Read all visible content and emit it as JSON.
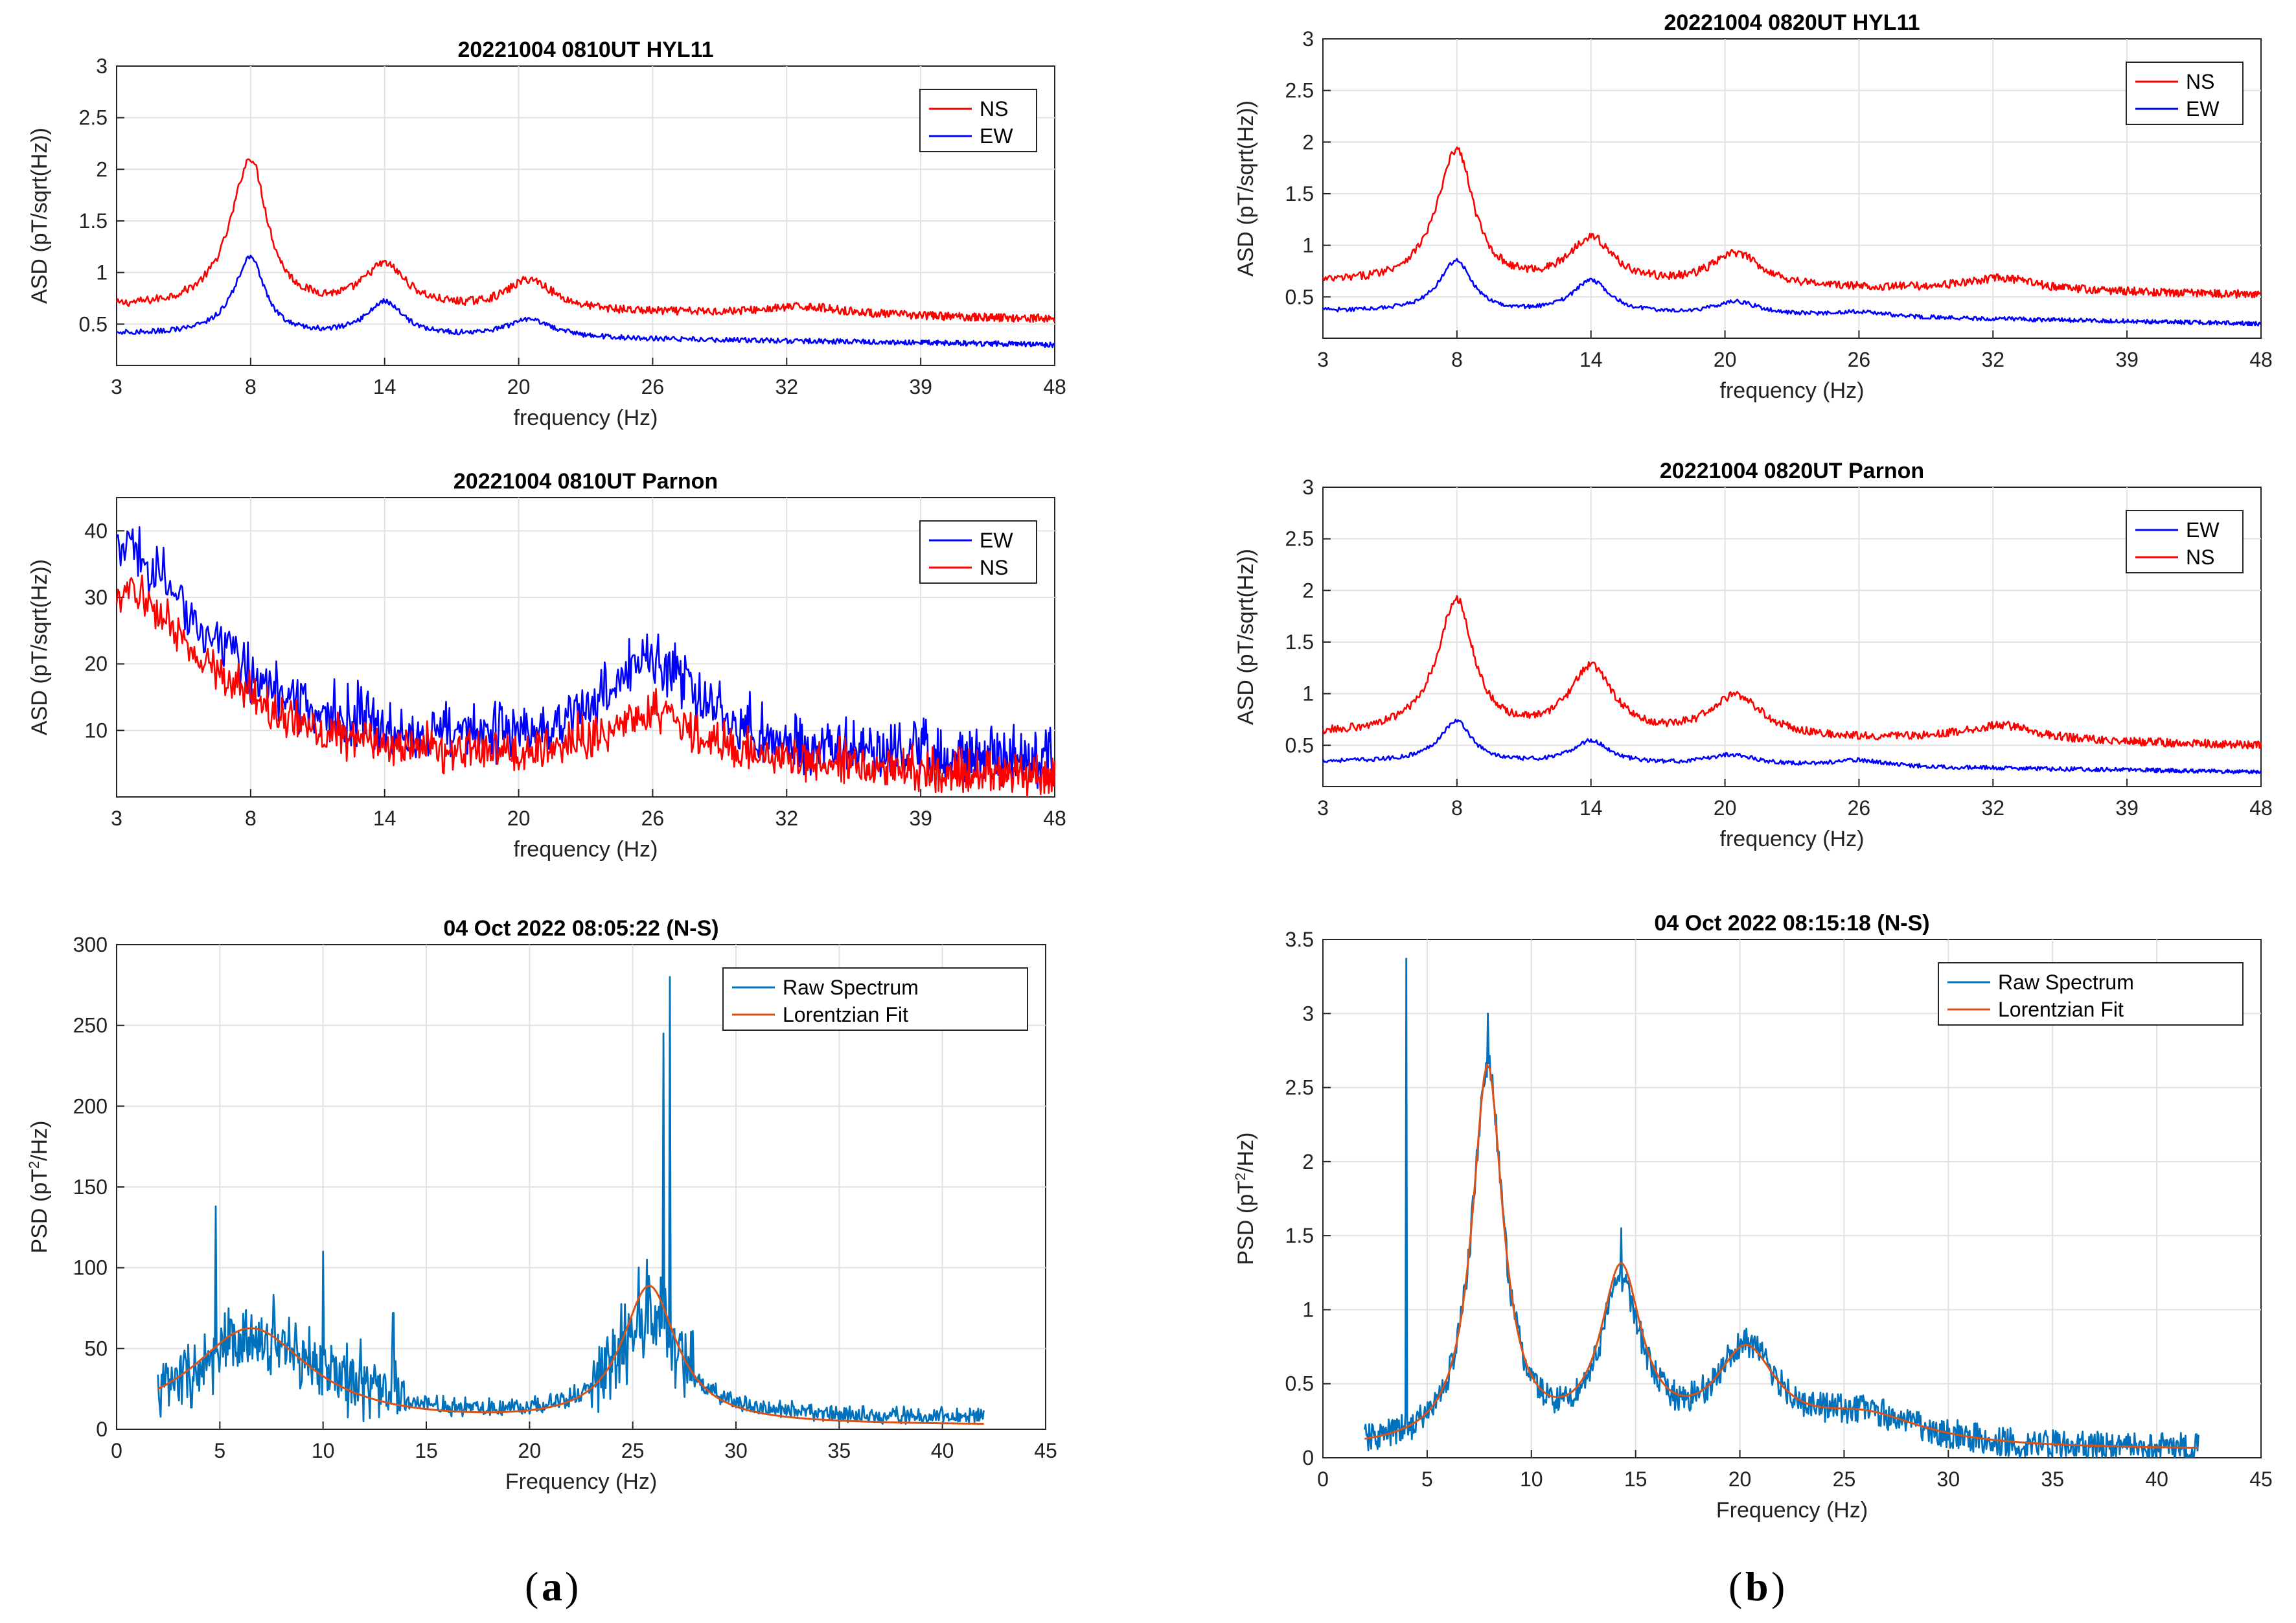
{
  "figure_labels": {
    "a": "a",
    "b": "b"
  },
  "colors": {
    "ns": "#ff0000",
    "ew": "#0000ff",
    "raw": "#0072bd",
    "fit": "#d95319",
    "grid": "#e2e2e2"
  },
  "chart_data": [
    {
      "id": "a1",
      "type": "line",
      "title": "20221004  0810UT     HYL11",
      "xlabel": "frequency (Hz)",
      "ylabel": "ASD (pT/sqrt(Hz))",
      "xticks": [
        3,
        8,
        14,
        20,
        26,
        32,
        39,
        48
      ],
      "yticks": [
        0.5,
        1,
        1.5,
        2,
        2.5,
        3
      ],
      "ylim": [
        0.1,
        3
      ],
      "legend": [
        "NS",
        "EW"
      ],
      "series": [
        {
          "name": "NS",
          "color": "#ff0000",
          "baseline": 0.65,
          "peaks": [
            [
              8,
              1.45,
              0.9
            ],
            [
              14,
              0.42,
              1.2
            ],
            [
              20.5,
              0.3,
              1.3
            ],
            [
              33,
              0.08,
              2.5
            ]
          ],
          "noise": 0.04,
          "tail": -0.1
        },
        {
          "name": "EW",
          "color": "#0000ff",
          "baseline": 0.4,
          "peaks": [
            [
              8,
              0.75,
              0.75
            ],
            [
              14,
              0.33,
              1.0
            ],
            [
              20.5,
              0.17,
              1.3
            ]
          ],
          "noise": 0.025,
          "tail": -0.1
        }
      ]
    },
    {
      "id": "a2",
      "type": "line",
      "title": "20221004  0810UT     Parnon",
      "xlabel": "frequency (Hz)",
      "ylabel": "ASD (pT/sqrt(Hz))",
      "xticks": [
        3,
        8,
        14,
        20,
        26,
        32,
        39,
        48
      ],
      "yticks": [
        10,
        20,
        30,
        40
      ],
      "ylim": [
        0,
        45
      ],
      "legend": [
        "EW",
        "NS"
      ],
      "series": [
        {
          "name": "EW",
          "color": "#0000ff",
          "baseline": 6,
          "peaks": [
            [
              3,
              30,
              4
            ],
            [
              26,
              14,
              2.5
            ]
          ],
          "noise": 8,
          "tail": -2,
          "spiky": true
        },
        {
          "name": "NS",
          "color": "#ff0000",
          "baseline": 4,
          "peaks": [
            [
              3,
              26,
              4
            ],
            [
              26,
              8,
              3
            ]
          ],
          "noise": 6,
          "tail": -2,
          "spiky": true
        }
      ]
    },
    {
      "id": "a3",
      "type": "line",
      "title": "04 Oct 2022 08:05:22 (N-S)",
      "xlabel": "Frequency (Hz)",
      "ylabel": "PSD (pT",
      "ylabel_sup": "2",
      "ylabel_end": "/Hz)",
      "xticks": [
        0,
        5,
        10,
        15,
        20,
        25,
        30,
        35,
        40,
        45
      ],
      "yticks": [
        0,
        50,
        100,
        150,
        200,
        250,
        300
      ],
      "xlim": [
        0,
        45
      ],
      "ylim": [
        0,
        300
      ],
      "legend": [
        "Raw Spectrum",
        "Lorentzian Fit"
      ],
      "series": [
        {
          "name": "Raw Spectrum",
          "color": "#0072bd",
          "x_range": [
            2,
            42
          ],
          "baseline": 5,
          "peaks": [
            [
              7,
              45,
              3.5
            ],
            [
              25.8,
              60,
              1.8
            ]
          ],
          "noise": 40,
          "spiky": true,
          "spikes": [
            [
              26.8,
              280
            ],
            [
              26.5,
              245
            ],
            [
              4.8,
              138
            ],
            [
              10,
              110
            ],
            [
              13.4,
              72
            ]
          ]
        },
        {
          "name": "Lorentzian Fit",
          "color": "#d95319",
          "x_range": [
            2,
            42
          ],
          "baseline": 2,
          "peaks": [
            [
              6.5,
              60,
              3.5
            ],
            [
              25.8,
              85,
              1.6
            ]
          ],
          "noise": 0
        }
      ]
    },
    {
      "id": "b1",
      "type": "line",
      "title": "20221004  0820UT     HYL11",
      "xlabel": "frequency (Hz)",
      "ylabel": "ASD (pT/sqrt(Hz))",
      "xticks": [
        3,
        8,
        14,
        20,
        26,
        32,
        39,
        48
      ],
      "yticks": [
        0.5,
        1,
        1.5,
        2,
        2.5,
        3
      ],
      "ylim": [
        0.1,
        3
      ],
      "legend": [
        "NS",
        "EW"
      ],
      "series": [
        {
          "name": "NS",
          "color": "#ff0000",
          "baseline": 0.62,
          "peaks": [
            [
              8,
              1.3,
              0.9
            ],
            [
              14,
              0.45,
              1.2
            ],
            [
              20.5,
              0.32,
              1.4
            ],
            [
              32.5,
              0.12,
              2.2
            ]
          ],
          "noise": 0.04,
          "tail": -0.1
        },
        {
          "name": "EW",
          "color": "#0000ff",
          "baseline": 0.36,
          "peaks": [
            [
              8,
              0.5,
              0.8
            ],
            [
              14,
              0.32,
              1.0
            ],
            [
              20.5,
              0.13,
              1.3
            ],
            [
              26,
              0.05,
              1.5
            ]
          ],
          "noise": 0.02,
          "tail": -0.12
        }
      ]
    },
    {
      "id": "b2",
      "type": "line",
      "title": "20221004  0820UT     Parnon",
      "xlabel": "frequency (Hz)",
      "ylabel": "ASD (pT/sqrt(Hz))",
      "xticks": [
        3,
        8,
        14,
        20,
        26,
        32,
        39,
        48
      ],
      "yticks": [
        0.5,
        1,
        1.5,
        2,
        2.5,
        3
      ],
      "ylim": [
        0.1,
        3
      ],
      "legend": [
        "EW",
        "NS"
      ],
      "series": [
        {
          "name": "EW",
          "color": "#0000ff",
          "baseline": 0.34,
          "peaks": [
            [
              8,
              0.4,
              0.8
            ],
            [
              14,
              0.22,
              1.0
            ],
            [
              20.3,
              0.1,
              1.3
            ],
            [
              26,
              0.06,
              1.5
            ]
          ],
          "noise": 0.02,
          "tail": -0.1
        },
        {
          "name": "NS",
          "color": "#ff0000",
          "baseline": 0.6,
          "peaks": [
            [
              8,
              1.3,
              0.9
            ],
            [
              14,
              0.65,
              1.2
            ],
            [
              20.5,
              0.4,
              1.4
            ],
            [
              32.5,
              0.15,
              2.2
            ]
          ],
          "noise": 0.04,
          "tail": -0.1
        }
      ]
    },
    {
      "id": "b3",
      "type": "line",
      "title": "04 Oct 2022 08:15:18 (N-S)",
      "xlabel": "Frequency (Hz)",
      "ylabel": "PSD (pT",
      "ylabel_sup": "2",
      "ylabel_end": "/Hz)",
      "xticks": [
        0,
        5,
        10,
        15,
        20,
        25,
        30,
        35,
        40,
        45
      ],
      "yticks": [
        0,
        0.5,
        1,
        1.5,
        2,
        2.5,
        3,
        3.5
      ],
      "xlim": [
        0,
        45
      ],
      "ylim": [
        0,
        3.5
      ],
      "legend": [
        "Raw Spectrum",
        "Lorentzian Fit"
      ],
      "series": [
        {
          "name": "Raw Spectrum",
          "color": "#0072bd",
          "x_range": [
            2,
            42
          ],
          "baseline": 0.05,
          "peaks": [
            [
              7.9,
              2.55,
              0.9
            ],
            [
              14.3,
              1.05,
              1.2
            ],
            [
              20.3,
              0.62,
              1.8
            ],
            [
              26,
              0.2,
              3.5
            ]
          ],
          "noise": 0.1,
          "spikes": [
            [
              4,
              3.37
            ],
            [
              7.9,
              3.0
            ],
            [
              14.3,
              1.55
            ]
          ]
        },
        {
          "name": "Lorentzian Fit",
          "color": "#d95319",
          "x_range": [
            2,
            42
          ],
          "baseline": 0.05,
          "peaks": [
            [
              7.9,
              2.55,
              0.9
            ],
            [
              14.3,
              1.15,
              1.2
            ],
            [
              20.3,
              0.6,
              1.8
            ],
            [
              26,
              0.2,
              3.5
            ]
          ],
          "noise": 0
        }
      ]
    }
  ]
}
